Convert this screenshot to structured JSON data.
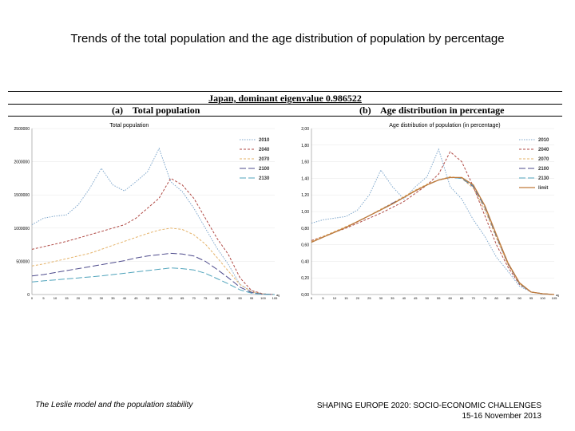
{
  "slide": {
    "title": "Trends of the total population and the age distribution of population by percentage",
    "footer_left": "The Leslie model and the population stability",
    "footer_right_line1": "SHAPING EUROPE 2020: SOCIO-ECONOMIC CHALLENGES",
    "footer_right_line2": "15-16 November 2013"
  },
  "figure": {
    "title": "Japan, dominant eigenvalue 0.986522",
    "panel_a_label": "(a)",
    "panel_a_title": "Total population",
    "panel_b_label": "(b)",
    "panel_b_title": "Age distribution in percentage"
  },
  "chart_data": [
    {
      "type": "line",
      "title": "Total population",
      "xlabel": "age",
      "ylabel": "",
      "ylim": [
        0,
        2500000
      ],
      "yticks": [
        0,
        500000,
        1000000,
        1500000,
        2000000,
        2500000
      ],
      "ytick_labels": [
        "0",
        "500000",
        "1000000",
        "1500000",
        "2000000",
        "2500000"
      ],
      "x": [
        0,
        5,
        10,
        15,
        20,
        25,
        30,
        35,
        40,
        45,
        50,
        55,
        60,
        65,
        70,
        75,
        80,
        85,
        90,
        95,
        100,
        105
      ],
      "legend_position": "top-right",
      "series": [
        {
          "name": "2010",
          "color": "#7fa7cc",
          "dash": "1.5,1.5",
          "values": [
            1050000,
            1150000,
            1180000,
            1200000,
            1350000,
            1600000,
            1900000,
            1650000,
            1560000,
            1700000,
            1850000,
            2200000,
            1700000,
            1550000,
            1300000,
            1000000,
            700000,
            450000,
            150000,
            50000,
            10000,
            0
          ]
        },
        {
          "name": "2040",
          "color": "#b04a45",
          "dash": "3,2",
          "values": [
            680000,
            720000,
            760000,
            800000,
            850000,
            900000,
            950000,
            1000000,
            1050000,
            1150000,
            1300000,
            1450000,
            1750000,
            1650000,
            1450000,
            1150000,
            850000,
            600000,
            250000,
            60000,
            10000,
            0
          ]
        },
        {
          "name": "2070",
          "color": "#e5b36a",
          "dash": "3,2",
          "values": [
            430000,
            460000,
            500000,
            540000,
            580000,
            620000,
            680000,
            740000,
            800000,
            860000,
            920000,
            970000,
            1000000,
            980000,
            900000,
            760000,
            560000,
            350000,
            150000,
            40000,
            8000,
            0
          ]
        },
        {
          "name": "2100",
          "color": "#4e4b8c",
          "dash": "8,3",
          "values": [
            280000,
            300000,
            330000,
            360000,
            390000,
            420000,
            450000,
            480000,
            510000,
            550000,
            580000,
            600000,
            620000,
            610000,
            580000,
            500000,
            380000,
            250000,
            110000,
            30000,
            5000,
            0
          ]
        },
        {
          "name": "2130",
          "color": "#4fa3bb",
          "dash": "8,3",
          "values": [
            190000,
            205000,
            220000,
            235000,
            250000,
            265000,
            280000,
            300000,
            320000,
            340000,
            360000,
            380000,
            400000,
            390000,
            370000,
            320000,
            240000,
            160000,
            70000,
            20000,
            3000,
            0
          ]
        }
      ]
    },
    {
      "type": "line",
      "title": "Age distribution of population (in percentage)",
      "xlabel": "age",
      "ylabel": "",
      "ylim": [
        0,
        2.0
      ],
      "yticks": [
        0,
        0.2,
        0.4,
        0.6,
        0.8,
        1.0,
        1.2,
        1.4,
        1.6,
        1.8,
        2.0
      ],
      "ytick_labels": [
        "0,00",
        "0,20",
        "0,40",
        "0,60",
        "0,80",
        "1,00",
        "1,20",
        "1,40",
        "1,60",
        "1,80",
        "2,00"
      ],
      "x": [
        0,
        5,
        10,
        15,
        20,
        25,
        30,
        35,
        40,
        45,
        50,
        55,
        60,
        65,
        70,
        75,
        80,
        85,
        90,
        95,
        100,
        105
      ],
      "legend_position": "top-right",
      "series": [
        {
          "name": "2010",
          "color": "#7fa7cc",
          "dash": "1.5,1.5",
          "values": [
            0.86,
            0.9,
            0.92,
            0.94,
            1.02,
            1.2,
            1.5,
            1.3,
            1.15,
            1.3,
            1.42,
            1.75,
            1.3,
            1.15,
            0.9,
            0.7,
            0.45,
            0.28,
            0.1,
            0.03,
            0.01,
            0
          ]
        },
        {
          "name": "2040",
          "color": "#b04a45",
          "dash": "3,2",
          "values": [
            0.65,
            0.7,
            0.75,
            0.8,
            0.86,
            0.92,
            0.98,
            1.05,
            1.12,
            1.22,
            1.32,
            1.45,
            1.72,
            1.6,
            1.3,
            0.95,
            0.6,
            0.33,
            0.12,
            0.03,
            0.01,
            0
          ]
        },
        {
          "name": "2070",
          "color": "#e5b36a",
          "dash": "3,2",
          "values": [
            0.64,
            0.7,
            0.76,
            0.82,
            0.88,
            0.95,
            1.03,
            1.1,
            1.18,
            1.26,
            1.33,
            1.38,
            1.42,
            1.4,
            1.28,
            1.02,
            0.68,
            0.36,
            0.13,
            0.03,
            0.01,
            0
          ]
        },
        {
          "name": "2100",
          "color": "#4e4b8c",
          "dash": "8,3",
          "values": [
            0.63,
            0.69,
            0.75,
            0.81,
            0.88,
            0.95,
            1.02,
            1.1,
            1.17,
            1.25,
            1.32,
            1.38,
            1.41,
            1.4,
            1.3,
            1.05,
            0.7,
            0.37,
            0.13,
            0.03,
            0.01,
            0
          ]
        },
        {
          "name": "2130",
          "color": "#4fa3bb",
          "dash": "8,3",
          "values": [
            0.63,
            0.69,
            0.75,
            0.81,
            0.88,
            0.95,
            1.02,
            1.09,
            1.17,
            1.25,
            1.32,
            1.38,
            1.41,
            1.4,
            1.31,
            1.06,
            0.71,
            0.38,
            0.13,
            0.03,
            0.01,
            0
          ]
        },
        {
          "name": "limit",
          "color": "#c07a3a",
          "dash": "",
          "values": [
            0.63,
            0.69,
            0.75,
            0.81,
            0.88,
            0.95,
            1.02,
            1.09,
            1.17,
            1.25,
            1.32,
            1.38,
            1.41,
            1.41,
            1.32,
            1.07,
            0.72,
            0.38,
            0.14,
            0.03,
            0.01,
            0
          ]
        }
      ]
    }
  ]
}
